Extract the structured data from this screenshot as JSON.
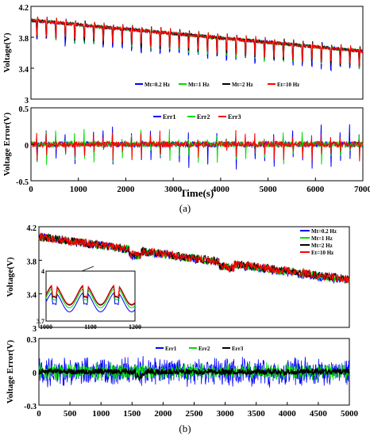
{
  "chart_data": [
    {
      "panel": "(a)",
      "type": "line",
      "ylabel": "Voltage(V)",
      "xlim": [
        0,
        7000
      ],
      "ylim": [
        3,
        4.2
      ],
      "yticks": [
        "4.2",
        "3.8",
        "3.4",
        "3"
      ],
      "legend": {
        "placement": "bottom-center",
        "entries": [
          "Mt=0.2 Hz",
          "Mt=1 Hz",
          "Mt=2 Hz",
          "Et=10 Hz"
        ]
      },
      "series": [
        {
          "name": "Mt=0.2 Hz",
          "color": "#0000ff",
          "trend": {
            "x": [
              0,
              7000
            ],
            "y": [
              4.02,
              3.62
            ]
          },
          "pulse_depth": 0.28
        },
        {
          "name": "Mt=1 Hz",
          "color": "#00dd00",
          "trend": {
            "x": [
              0,
              7000
            ],
            "y": [
              4.02,
              3.62
            ]
          },
          "pulse_depth": 0.24
        },
        {
          "name": "Mt=2 Hz",
          "color": "#000000",
          "trend": {
            "x": [
              0,
              7000
            ],
            "y": [
              4.02,
              3.62
            ]
          },
          "pulse_depth": 0.22
        },
        {
          "name": "Et=10 Hz",
          "color": "#ff0000",
          "trend": {
            "x": [
              0,
              7000
            ],
            "y": [
              4.02,
              3.62
            ]
          },
          "pulse_depth": 0.2
        }
      ]
    },
    {
      "panel": "(a)",
      "type": "line",
      "ylabel": "Voltage Error(V)",
      "xlabel": "Time(s)",
      "xlim": [
        0,
        7000
      ],
      "xticks": [
        "0",
        "1000",
        "2000",
        "3000",
        "4000",
        "5000",
        "6000",
        "7000"
      ],
      "ylim": [
        -0.5,
        0.5
      ],
      "yticks": [
        "0.5",
        "0",
        "-0.5"
      ],
      "legend": {
        "placement": "top-center",
        "entries": [
          "Err1",
          "Err2",
          "Err3"
        ]
      },
      "series": [
        {
          "name": "Err1",
          "color": "#0000ff",
          "amplitude": 0.35
        },
        {
          "name": "Err2",
          "color": "#00dd00",
          "amplitude": 0.3
        },
        {
          "name": "Err3",
          "color": "#ff0000",
          "amplitude": 0.25
        }
      ]
    },
    {
      "panel": "(b)",
      "type": "line",
      "ylabel": "Voltage(V)",
      "xlim": [
        0,
        5000
      ],
      "ylim": [
        3,
        4.2
      ],
      "yticks": [
        "4.2",
        "3.8",
        "3.4",
        "3"
      ],
      "legend": {
        "placement": "top-right",
        "entries": [
          "Mt=0.2 Hz",
          "Mt=1 Hz",
          "Mt=2 Hz",
          "Et=10 Hz"
        ]
      },
      "series": [
        {
          "name": "Mt=0.2 Hz",
          "color": "#0000ff",
          "trend": {
            "x": [
              0,
              5000
            ],
            "y": [
              4.08,
              3.55
            ]
          }
        },
        {
          "name": "Mt=1 Hz",
          "color": "#00dd00",
          "trend": {
            "x": [
              0,
              5000
            ],
            "y": [
              4.08,
              3.56
            ]
          }
        },
        {
          "name": "Mt=2 Hz",
          "color": "#000000",
          "trend": {
            "x": [
              0,
              5000
            ],
            "y": [
              4.08,
              3.57
            ]
          }
        },
        {
          "name": "Et=10 Hz",
          "color": "#ff0000",
          "trend": {
            "x": [
              0,
              5000
            ],
            "y": [
              4.08,
              3.57
            ]
          }
        }
      ],
      "inset": {
        "xlim": [
          1000,
          1200
        ],
        "xticks": [
          "1000",
          "1100",
          "1200"
        ],
        "ylim": [
          3.7,
          4
        ],
        "yticks": [
          "4",
          "3.7"
        ]
      }
    },
    {
      "panel": "(b)",
      "type": "line",
      "ylabel": "Voltage Error(V)",
      "xlim": [
        0,
        5000
      ],
      "xticks": [
        "0",
        "500",
        "1000",
        "1500",
        "2000",
        "2500",
        "3000",
        "3500",
        "4000",
        "4500",
        "5000"
      ],
      "ylim": [
        -0.3,
        0.3
      ],
      "yticks": [
        "0.3",
        "0",
        "-0.3"
      ],
      "legend": {
        "placement": "top-center",
        "entries": [
          "Err1",
          "Err2",
          "Err3"
        ]
      },
      "series": [
        {
          "name": "Err1",
          "color": "#0000ff",
          "amplitude": 0.15
        },
        {
          "name": "Err2",
          "color": "#00dd00",
          "amplitude": 0.09
        },
        {
          "name": "Err3",
          "color": "#000000",
          "amplitude": 0.025
        }
      ]
    }
  ],
  "captions": {
    "a": "(a)",
    "b": "(b)"
  }
}
